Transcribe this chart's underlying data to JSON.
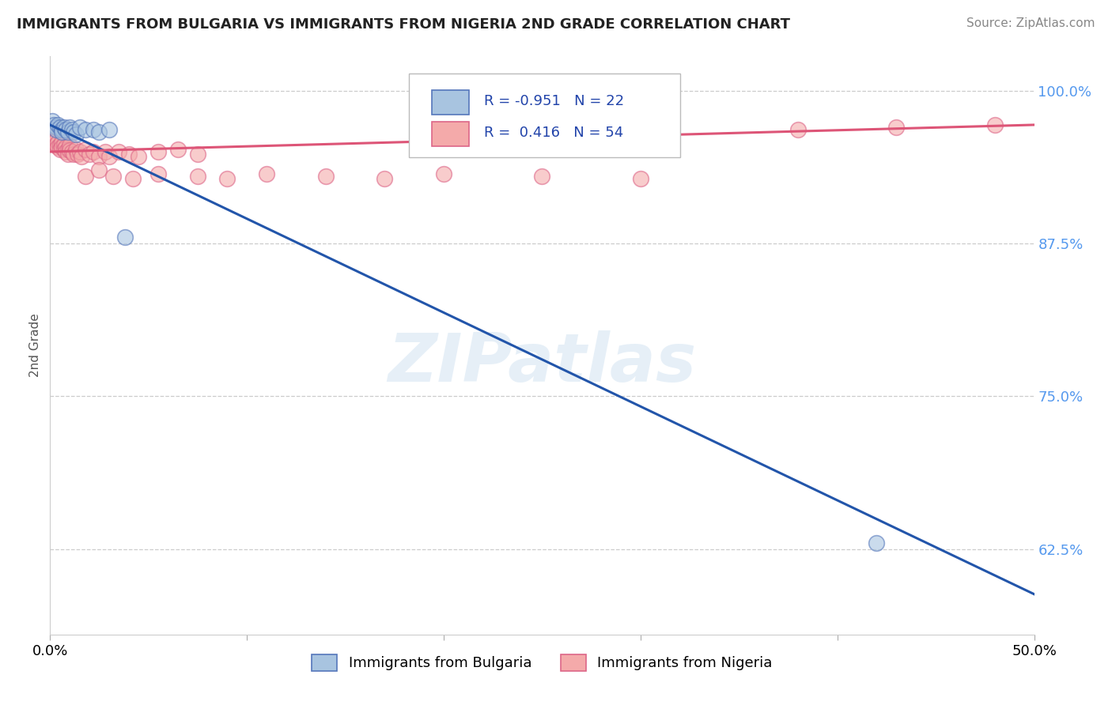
{
  "title": "IMMIGRANTS FROM BULGARIA VS IMMIGRANTS FROM NIGERIA 2ND GRADE CORRELATION CHART",
  "source_text": "Source: ZipAtlas.com",
  "ylabel": "2nd Grade",
  "xlim": [
    0.0,
    0.5
  ],
  "ylim": [
    0.555,
    1.028
  ],
  "xticks": [
    0.0,
    0.1,
    0.2,
    0.3,
    0.4,
    0.5
  ],
  "xticklabels": [
    "0.0%",
    "",
    "",
    "",
    "",
    "50.0%"
  ],
  "yticks_right": [
    0.625,
    0.75,
    0.875,
    1.0
  ],
  "yticklabels_right": [
    "62.5%",
    "75.0%",
    "87.5%",
    "100.0%"
  ],
  "bulgaria_R": -0.951,
  "bulgaria_N": 22,
  "nigeria_R": 0.416,
  "nigeria_N": 54,
  "bulgaria_color": "#A8C4E0",
  "nigeria_color": "#F4AAAA",
  "bulgaria_edge_color": "#5577BB",
  "nigeria_edge_color": "#DD6688",
  "bulgaria_line_color": "#2255AA",
  "nigeria_line_color": "#DD5577",
  "watermark": "ZIPatlas",
  "bg_color": "#FFFFFF",
  "grid_color": "#CCCCCC",
  "right_tick_color": "#5599EE",
  "title_color": "#222222",
  "source_color": "#888888",
  "bulgaria_x": [
    0.001,
    0.002,
    0.003,
    0.003,
    0.004,
    0.005,
    0.006,
    0.006,
    0.007,
    0.008,
    0.009,
    0.01,
    0.011,
    0.012,
    0.013,
    0.015,
    0.018,
    0.022,
    0.025,
    0.03,
    0.038,
    0.42
  ],
  "bulgaria_y": [
    0.975,
    0.972,
    0.97,
    0.968,
    0.972,
    0.97,
    0.968,
    0.966,
    0.97,
    0.968,
    0.966,
    0.97,
    0.968,
    0.966,
    0.964,
    0.97,
    0.968,
    0.968,
    0.966,
    0.968,
    0.88,
    0.63
  ],
  "nigeria_x": [
    0.001,
    0.001,
    0.002,
    0.002,
    0.003,
    0.003,
    0.004,
    0.004,
    0.005,
    0.005,
    0.006,
    0.006,
    0.007,
    0.007,
    0.008,
    0.008,
    0.009,
    0.009,
    0.01,
    0.01,
    0.011,
    0.012,
    0.013,
    0.014,
    0.015,
    0.016,
    0.018,
    0.02,
    0.022,
    0.025,
    0.028,
    0.03,
    0.035,
    0.04,
    0.045,
    0.055,
    0.065,
    0.075,
    0.018,
    0.025,
    0.032,
    0.042,
    0.055,
    0.075,
    0.09,
    0.11,
    0.14,
    0.17,
    0.2,
    0.25,
    0.3,
    0.38,
    0.43,
    0.48
  ],
  "nigeria_y": [
    0.965,
    0.96,
    0.962,
    0.958,
    0.96,
    0.956,
    0.958,
    0.954,
    0.956,
    0.952,
    0.958,
    0.954,
    0.956,
    0.952,
    0.954,
    0.95,
    0.952,
    0.948,
    0.955,
    0.951,
    0.95,
    0.948,
    0.952,
    0.948,
    0.95,
    0.946,
    0.952,
    0.948,
    0.95,
    0.946,
    0.95,
    0.946,
    0.95,
    0.948,
    0.946,
    0.95,
    0.952,
    0.948,
    0.93,
    0.935,
    0.93,
    0.928,
    0.932,
    0.93,
    0.928,
    0.932,
    0.93,
    0.928,
    0.932,
    0.93,
    0.928,
    0.968,
    0.97,
    0.972
  ],
  "bul_line_x0": 0.0,
  "bul_line_y0": 0.972,
  "bul_line_x1": 0.5,
  "bul_line_y1": 0.588,
  "ng_line_x0": 0.0,
  "ng_line_y0": 0.95,
  "ng_line_x1": 0.5,
  "ng_line_y1": 0.972,
  "leg_R_bul": "R = -0.951",
  "leg_N_bul": "N = 22",
  "leg_R_ng": "R =  0.416",
  "leg_N_ng": "N = 54"
}
